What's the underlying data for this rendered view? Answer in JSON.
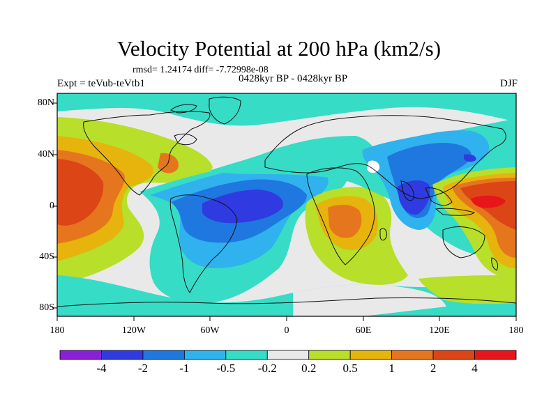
{
  "header": {
    "title": "Velocity Potential at 200 hPa (km2/s)",
    "stats": "rmsd= 1.24174 diff= -7.72998e-08",
    "experiment": "Expt = teVub-teVtb1",
    "period": "0428kyr BP - 0428kyr BP",
    "season": "DJF"
  },
  "map": {
    "lat_ticks": [
      "80N",
      "40N",
      "0",
      "40S",
      "80S"
    ],
    "lon_ticks": [
      "180",
      "120W",
      "60W",
      "0",
      "60E",
      "120E",
      "180"
    ]
  },
  "colorbar": {
    "labels": [
      "-4",
      "-2",
      "-1",
      "-0.5",
      "-0.2",
      "0.2",
      "0.5",
      "1",
      "2",
      "4"
    ],
    "colors": [
      "#8a1fd6",
      "#2f3be0",
      "#1f78e0",
      "#2fb2ee",
      "#36dcc6",
      "#e9e9e9",
      "#b8df2a",
      "#e6b40c",
      "#e6761e",
      "#dc4516",
      "#e8151a"
    ]
  }
}
